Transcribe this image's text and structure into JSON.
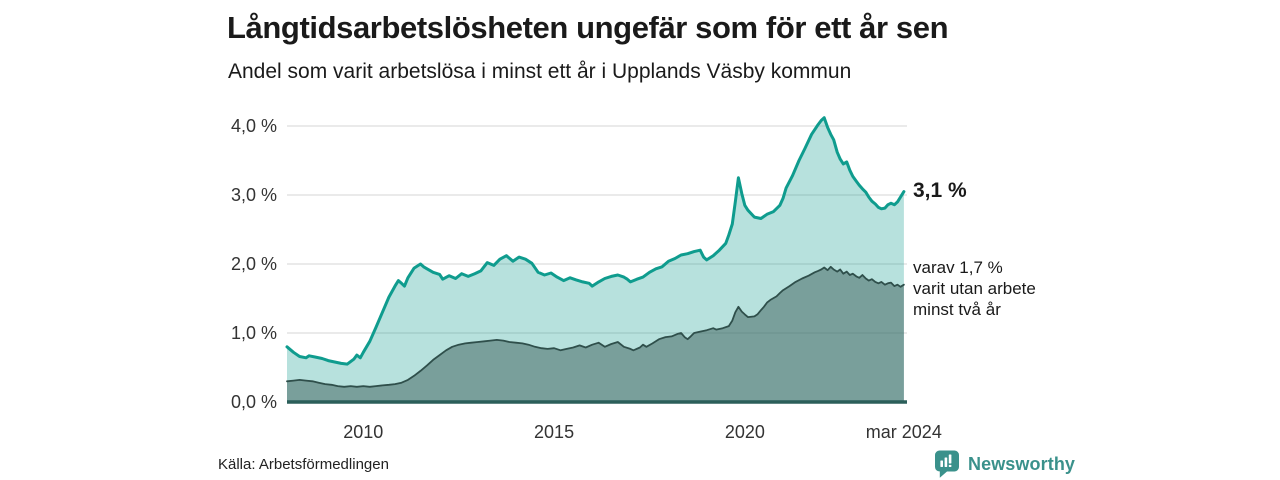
{
  "chart_data": {
    "type": "area",
    "title": "Långtidsarbetslösheten ungefär som för ett år sen",
    "subtitle": "Andel som varit arbetslösa i minst ett år i Upplands Väsby kommun",
    "x_unit": "decimal_year_monthly",
    "x_range": [
      2008.0,
      2024.25
    ],
    "ylim": [
      0,
      4.3
    ],
    "grid": "horizontal",
    "legend_position": "right-annotations",
    "y_ticks": [
      {
        "value": 0,
        "label": "0,0 %"
      },
      {
        "value": 1,
        "label": "1,0 %"
      },
      {
        "value": 2,
        "label": "2,0 %"
      },
      {
        "value": 3,
        "label": "3,0 %"
      },
      {
        "value": 4,
        "label": "4,0 %"
      }
    ],
    "x_ticks": [
      {
        "value": 2010,
        "label": "2010"
      },
      {
        "value": 2015,
        "label": "2015"
      },
      {
        "value": 2020,
        "label": "2020"
      },
      {
        "value": 2024.1667,
        "label": "mar 2024"
      }
    ],
    "series": [
      {
        "name": "Arbetslösa minst ett år",
        "line_color": "#0f9c8e",
        "line_width": 3,
        "fill_color": "rgba(15,156,142,0.30)",
        "end_value_label": "3,1 %",
        "points": [
          [
            2008.0,
            0.8
          ],
          [
            2008.17,
            0.72
          ],
          [
            2008.33,
            0.66
          ],
          [
            2008.5,
            0.64
          ],
          [
            2008.58,
            0.67
          ],
          [
            2008.75,
            0.65
          ],
          [
            2008.92,
            0.63
          ],
          [
            2009.08,
            0.6
          ],
          [
            2009.25,
            0.58
          ],
          [
            2009.42,
            0.56
          ],
          [
            2009.58,
            0.55
          ],
          [
            2009.75,
            0.62
          ],
          [
            2009.83,
            0.68
          ],
          [
            2009.92,
            0.64
          ],
          [
            2010.0,
            0.72
          ],
          [
            2010.17,
            0.88
          ],
          [
            2010.33,
            1.08
          ],
          [
            2010.5,
            1.3
          ],
          [
            2010.67,
            1.52
          ],
          [
            2010.83,
            1.68
          ],
          [
            2010.92,
            1.76
          ],
          [
            2011.0,
            1.72
          ],
          [
            2011.08,
            1.68
          ],
          [
            2011.17,
            1.8
          ],
          [
            2011.33,
            1.94
          ],
          [
            2011.5,
            2.0
          ],
          [
            2011.58,
            1.96
          ],
          [
            2011.67,
            1.93
          ],
          [
            2011.83,
            1.88
          ],
          [
            2012.0,
            1.85
          ],
          [
            2012.08,
            1.78
          ],
          [
            2012.25,
            1.83
          ],
          [
            2012.42,
            1.79
          ],
          [
            2012.58,
            1.86
          ],
          [
            2012.75,
            1.82
          ],
          [
            2012.92,
            1.86
          ],
          [
            2013.08,
            1.9
          ],
          [
            2013.25,
            2.02
          ],
          [
            2013.42,
            1.98
          ],
          [
            2013.58,
            2.07
          ],
          [
            2013.75,
            2.12
          ],
          [
            2013.92,
            2.04
          ],
          [
            2014.08,
            2.1
          ],
          [
            2014.25,
            2.07
          ],
          [
            2014.42,
            2.01
          ],
          [
            2014.58,
            1.88
          ],
          [
            2014.75,
            1.84
          ],
          [
            2014.92,
            1.87
          ],
          [
            2015.08,
            1.81
          ],
          [
            2015.25,
            1.76
          ],
          [
            2015.42,
            1.8
          ],
          [
            2015.58,
            1.77
          ],
          [
            2015.75,
            1.74
          ],
          [
            2015.92,
            1.72
          ],
          [
            2016.0,
            1.68
          ],
          [
            2016.17,
            1.74
          ],
          [
            2016.33,
            1.79
          ],
          [
            2016.5,
            1.82
          ],
          [
            2016.67,
            1.84
          ],
          [
            2016.83,
            1.81
          ],
          [
            2016.92,
            1.78
          ],
          [
            2017.0,
            1.74
          ],
          [
            2017.17,
            1.78
          ],
          [
            2017.33,
            1.81
          ],
          [
            2017.5,
            1.88
          ],
          [
            2017.67,
            1.93
          ],
          [
            2017.83,
            1.96
          ],
          [
            2018.0,
            2.04
          ],
          [
            2018.17,
            2.08
          ],
          [
            2018.33,
            2.13
          ],
          [
            2018.5,
            2.15
          ],
          [
            2018.67,
            2.18
          ],
          [
            2018.83,
            2.2
          ],
          [
            2018.92,
            2.1
          ],
          [
            2019.0,
            2.06
          ],
          [
            2019.17,
            2.12
          ],
          [
            2019.33,
            2.2
          ],
          [
            2019.5,
            2.3
          ],
          [
            2019.58,
            2.42
          ],
          [
            2019.67,
            2.58
          ],
          [
            2019.75,
            2.9
          ],
          [
            2019.83,
            3.25
          ],
          [
            2019.92,
            3.02
          ],
          [
            2020.0,
            2.85
          ],
          [
            2020.08,
            2.78
          ],
          [
            2020.25,
            2.68
          ],
          [
            2020.42,
            2.66
          ],
          [
            2020.58,
            2.72
          ],
          [
            2020.75,
            2.76
          ],
          [
            2020.92,
            2.85
          ],
          [
            2021.0,
            2.95
          ],
          [
            2021.08,
            3.1
          ],
          [
            2021.25,
            3.28
          ],
          [
            2021.42,
            3.5
          ],
          [
            2021.58,
            3.68
          ],
          [
            2021.75,
            3.88
          ],
          [
            2021.92,
            4.02
          ],
          [
            2022.0,
            4.08
          ],
          [
            2022.08,
            4.12
          ],
          [
            2022.17,
            3.98
          ],
          [
            2022.25,
            3.88
          ],
          [
            2022.33,
            3.8
          ],
          [
            2022.42,
            3.62
          ],
          [
            2022.5,
            3.52
          ],
          [
            2022.58,
            3.45
          ],
          [
            2022.67,
            3.48
          ],
          [
            2022.75,
            3.36
          ],
          [
            2022.83,
            3.27
          ],
          [
            2022.92,
            3.2
          ],
          [
            2023.0,
            3.14
          ],
          [
            2023.08,
            3.09
          ],
          [
            2023.17,
            3.04
          ],
          [
            2023.25,
            2.97
          ],
          [
            2023.33,
            2.91
          ],
          [
            2023.42,
            2.87
          ],
          [
            2023.5,
            2.82
          ],
          [
            2023.58,
            2.8
          ],
          [
            2023.67,
            2.81
          ],
          [
            2023.75,
            2.86
          ],
          [
            2023.83,
            2.88
          ],
          [
            2023.92,
            2.86
          ],
          [
            2024.0,
            2.9
          ],
          [
            2024.08,
            2.97
          ],
          [
            2024.17,
            3.05
          ]
        ]
      },
      {
        "name": "varav utan arbete minst två år",
        "line_color": "#2f4f4b",
        "line_width": 1.8,
        "fill_color": "rgba(47,79,75,0.45)",
        "end_value_label": "varav 1,7 %",
        "points": [
          [
            2008.0,
            0.3
          ],
          [
            2008.17,
            0.31
          ],
          [
            2008.33,
            0.32
          ],
          [
            2008.5,
            0.31
          ],
          [
            2008.67,
            0.3
          ],
          [
            2008.83,
            0.28
          ],
          [
            2009.0,
            0.26
          ],
          [
            2009.17,
            0.25
          ],
          [
            2009.33,
            0.23
          ],
          [
            2009.5,
            0.22
          ],
          [
            2009.67,
            0.23
          ],
          [
            2009.83,
            0.22
          ],
          [
            2010.0,
            0.23
          ],
          [
            2010.17,
            0.22
          ],
          [
            2010.33,
            0.23
          ],
          [
            2010.5,
            0.24
          ],
          [
            2010.67,
            0.25
          ],
          [
            2010.83,
            0.26
          ],
          [
            2011.0,
            0.28
          ],
          [
            2011.17,
            0.32
          ],
          [
            2011.33,
            0.38
          ],
          [
            2011.5,
            0.45
          ],
          [
            2011.67,
            0.53
          ],
          [
            2011.83,
            0.61
          ],
          [
            2012.0,
            0.68
          ],
          [
            2012.17,
            0.75
          ],
          [
            2012.33,
            0.8
          ],
          [
            2012.5,
            0.83
          ],
          [
            2012.67,
            0.85
          ],
          [
            2012.83,
            0.86
          ],
          [
            2013.0,
            0.87
          ],
          [
            2013.17,
            0.88
          ],
          [
            2013.33,
            0.89
          ],
          [
            2013.5,
            0.9
          ],
          [
            2013.67,
            0.89
          ],
          [
            2013.83,
            0.87
          ],
          [
            2014.0,
            0.86
          ],
          [
            2014.17,
            0.85
          ],
          [
            2014.33,
            0.83
          ],
          [
            2014.5,
            0.8
          ],
          [
            2014.67,
            0.78
          ],
          [
            2014.83,
            0.77
          ],
          [
            2015.0,
            0.78
          ],
          [
            2015.17,
            0.75
          ],
          [
            2015.33,
            0.77
          ],
          [
            2015.5,
            0.79
          ],
          [
            2015.67,
            0.82
          ],
          [
            2015.83,
            0.79
          ],
          [
            2016.0,
            0.83
          ],
          [
            2016.17,
            0.86
          ],
          [
            2016.33,
            0.8
          ],
          [
            2016.5,
            0.84
          ],
          [
            2016.67,
            0.87
          ],
          [
            2016.83,
            0.8
          ],
          [
            2017.0,
            0.77
          ],
          [
            2017.08,
            0.75
          ],
          [
            2017.25,
            0.79
          ],
          [
            2017.33,
            0.83
          ],
          [
            2017.42,
            0.8
          ],
          [
            2017.58,
            0.85
          ],
          [
            2017.75,
            0.91
          ],
          [
            2017.92,
            0.94
          ],
          [
            2018.08,
            0.95
          ],
          [
            2018.25,
            0.99
          ],
          [
            2018.33,
            1.0
          ],
          [
            2018.42,
            0.94
          ],
          [
            2018.5,
            0.91
          ],
          [
            2018.58,
            0.95
          ],
          [
            2018.67,
            1.0
          ],
          [
            2018.83,
            1.02
          ],
          [
            2019.0,
            1.04
          ],
          [
            2019.17,
            1.07
          ],
          [
            2019.25,
            1.05
          ],
          [
            2019.42,
            1.07
          ],
          [
            2019.58,
            1.1
          ],
          [
            2019.67,
            1.18
          ],
          [
            2019.75,
            1.3
          ],
          [
            2019.83,
            1.38
          ],
          [
            2019.92,
            1.31
          ],
          [
            2020.0,
            1.27
          ],
          [
            2020.08,
            1.23
          ],
          [
            2020.25,
            1.24
          ],
          [
            2020.33,
            1.27
          ],
          [
            2020.42,
            1.33
          ],
          [
            2020.5,
            1.38
          ],
          [
            2020.58,
            1.44
          ],
          [
            2020.67,
            1.48
          ],
          [
            2020.83,
            1.53
          ],
          [
            2020.92,
            1.58
          ],
          [
            2021.0,
            1.62
          ],
          [
            2021.17,
            1.68
          ],
          [
            2021.33,
            1.74
          ],
          [
            2021.5,
            1.79
          ],
          [
            2021.67,
            1.83
          ],
          [
            2021.83,
            1.88
          ],
          [
            2021.92,
            1.9
          ],
          [
            2022.0,
            1.92
          ],
          [
            2022.08,
            1.95
          ],
          [
            2022.17,
            1.91
          ],
          [
            2022.25,
            1.96
          ],
          [
            2022.33,
            1.92
          ],
          [
            2022.42,
            1.89
          ],
          [
            2022.5,
            1.92
          ],
          [
            2022.58,
            1.86
          ],
          [
            2022.67,
            1.89
          ],
          [
            2022.75,
            1.84
          ],
          [
            2022.83,
            1.86
          ],
          [
            2022.92,
            1.82
          ],
          [
            2023.0,
            1.8
          ],
          [
            2023.08,
            1.84
          ],
          [
            2023.17,
            1.79
          ],
          [
            2023.25,
            1.76
          ],
          [
            2023.33,
            1.78
          ],
          [
            2023.42,
            1.74
          ],
          [
            2023.5,
            1.72
          ],
          [
            2023.58,
            1.74
          ],
          [
            2023.67,
            1.7
          ],
          [
            2023.75,
            1.72
          ],
          [
            2023.83,
            1.73
          ],
          [
            2023.92,
            1.68
          ],
          [
            2024.0,
            1.7
          ],
          [
            2024.08,
            1.67
          ],
          [
            2024.17,
            1.7
          ]
        ]
      }
    ],
    "colors": {
      "grid": "#dedede",
      "baseline": "#2b5f5a",
      "text": "#333333",
      "title": "#1a1a1a"
    }
  },
  "annotations": {
    "end_value": "3,1 %",
    "secondary_lines": [
      "varav 1,7 %",
      "varit utan arbete",
      "minst två år"
    ]
  },
  "footer": {
    "source": "Källa: Arbetsförmedlingen",
    "brand": "Newsworthy",
    "brand_color": "#3a918b"
  }
}
